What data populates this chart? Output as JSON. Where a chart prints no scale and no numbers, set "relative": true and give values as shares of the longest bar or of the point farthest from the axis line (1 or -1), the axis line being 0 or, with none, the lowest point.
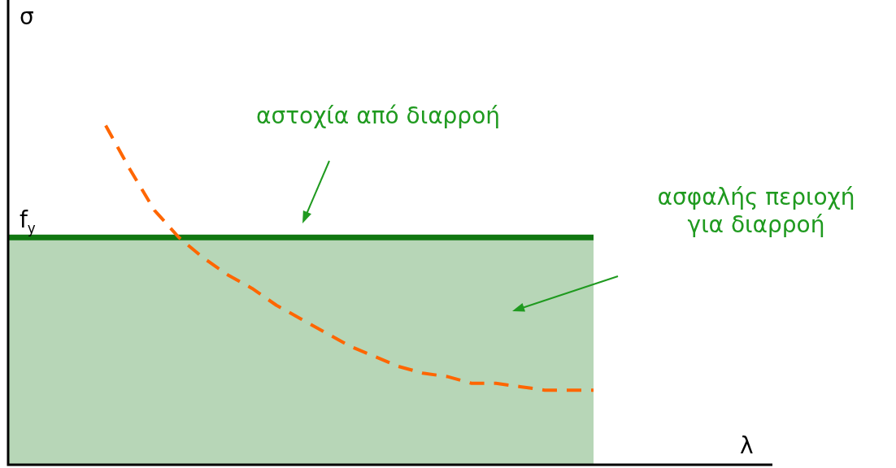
{
  "chart_data": {
    "type": "line",
    "relative": true,
    "xlabel": "λ",
    "ylabel": "σ",
    "legend": false,
    "categories": [
      null,
      null,
      null,
      null,
      null,
      null,
      null,
      null,
      null,
      null,
      null,
      null,
      null,
      null,
      null,
      null,
      null,
      null,
      null,
      null,
      null,
      null,
      null,
      null,
      null,
      null,
      null,
      null,
      null,
      null,
      null,
      null
    ],
    "series": [
      {
        "type": "area",
        "color": "#117711",
        "values": [
          0.67,
          0.67,
          0.67,
          0.67,
          0.67,
          0.67,
          0.67,
          0.67,
          0.67,
          0.67,
          0.67,
          0.67,
          0.67,
          0.67,
          0.67,
          0.67,
          0.67,
          0.67,
          0.67,
          0.67,
          0.67,
          0.67,
          0.67,
          0.67,
          0.67,
          null,
          null,
          null,
          null,
          null,
          null,
          null
        ]
      },
      {
        "type": "line",
        "color": "#ff6600",
        "line_style": "dashed",
        "values": [
          null,
          null,
          null,
          null,
          1,
          0.87,
          0.75,
          0.67,
          0.61,
          0.56,
          0.52,
          0.47,
          0.43,
          0.39,
          0.35,
          0.32,
          0.29,
          0.27,
          0.26,
          0.24,
          0.24,
          0.23,
          0.22,
          0.22,
          0.22,
          null,
          null,
          null,
          null,
          null,
          null,
          null
        ]
      }
    ],
    "annotations": [
      {
        "text": "f$_{y}$",
        "y": 0.67
      },
      "αστοχία από διαρροή",
      "ασφαλής περιοχή\nγια διαρροή"
    ]
  }
}
